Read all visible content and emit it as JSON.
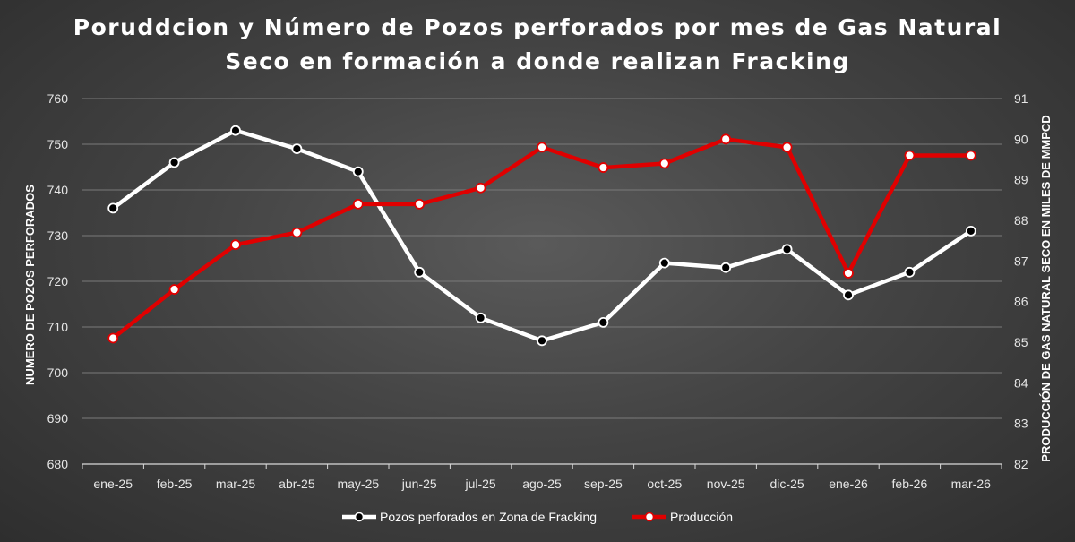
{
  "chart_data": {
    "type": "line",
    "title_lines": [
      "Poruddcion y Número de Pozos perforados por mes de Gas Natural",
      "Seco en formación a donde realizan Fracking"
    ],
    "categories": [
      "ene-25",
      "feb-25",
      "mar-25",
      "abr-25",
      "may-25",
      "jun-25",
      "jul-25",
      "ago-25",
      "sep-25",
      "oct-25",
      "nov-25",
      "dic-25",
      "ene-26",
      "feb-26",
      "mar-26"
    ],
    "ylabel_left": "NUMERO DE POZOS PERFORADOS",
    "ylabel_right": "PRODUCCIÓN DE  GAS NATURAL SECO EN MILES DE MMPCD",
    "ylim_left": [
      680,
      760
    ],
    "yticks_left": [
      680,
      690,
      700,
      710,
      720,
      730,
      740,
      750,
      760
    ],
    "ylim_right": [
      82,
      91
    ],
    "yticks_right": [
      82,
      83,
      84,
      85,
      86,
      87,
      88,
      89,
      90,
      91
    ],
    "grid": true,
    "legend_position": "bottom",
    "series": [
      {
        "name": "Pozos perforados en Zona de Fracking",
        "axis": "left",
        "color": "#ffffff",
        "marker_fill": "#000000",
        "values": [
          736,
          746,
          753,
          749,
          744,
          722,
          712,
          707,
          711,
          724,
          723,
          727,
          717,
          722,
          731
        ]
      },
      {
        "name": "Producción",
        "axis": "right",
        "color": "#e00000",
        "marker_fill": "#ffffff",
        "values": [
          85.1,
          86.3,
          87.4,
          87.7,
          88.4,
          88.4,
          88.8,
          89.8,
          89.3,
          89.4,
          90.0,
          89.8,
          86.7,
          89.6,
          89.6
        ]
      }
    ]
  }
}
